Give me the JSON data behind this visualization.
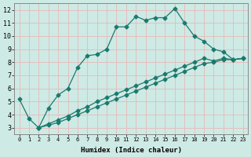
{
  "xlabel": "Humidex (Indice chaleur)",
  "background_color": "#ceeae5",
  "grid_color": "#e8b8b8",
  "line_color": "#1a7a6e",
  "xlim": [
    -0.5,
    23.5
  ],
  "ylim": [
    2.5,
    12.5
  ],
  "xticks": [
    0,
    1,
    2,
    3,
    4,
    5,
    6,
    7,
    8,
    9,
    10,
    11,
    12,
    13,
    14,
    15,
    16,
    17,
    18,
    19,
    20,
    21,
    22,
    23
  ],
  "yticks": [
    3,
    4,
    5,
    6,
    7,
    8,
    9,
    10,
    11,
    12
  ],
  "series1_x": [
    0,
    1,
    2,
    3,
    4,
    5,
    6,
    7,
    8,
    9,
    10,
    11,
    12,
    13,
    14,
    15,
    16,
    17,
    18,
    19,
    20,
    21,
    22,
    23
  ],
  "series1_y": [
    5.2,
    3.7,
    3.0,
    4.5,
    5.5,
    6.0,
    7.6,
    8.5,
    8.6,
    9.0,
    10.7,
    10.7,
    11.5,
    11.2,
    11.4,
    11.4,
    12.1,
    11.0,
    10.0,
    9.6,
    9.0,
    8.8,
    8.2,
    8.3
  ],
  "series2_full_x": [
    2,
    3,
    4,
    5,
    6,
    7,
    8,
    9,
    10,
    11,
    12,
    13,
    14,
    15,
    16,
    17,
    18,
    19,
    20,
    21,
    22,
    23
  ],
  "series2_full_y": [
    3.0,
    3.3,
    3.6,
    3.9,
    4.3,
    4.6,
    5.0,
    5.3,
    5.6,
    5.9,
    6.2,
    6.5,
    6.8,
    7.1,
    7.4,
    7.7,
    8.0,
    8.3,
    8.1,
    8.3,
    8.2,
    8.3
  ],
  "series3_full_x": [
    2,
    3,
    4,
    5,
    6,
    7,
    8,
    9,
    10,
    11,
    12,
    13,
    14,
    15,
    16,
    17,
    18,
    19,
    20,
    21,
    22,
    23
  ],
  "series3_full_y": [
    3.0,
    3.2,
    3.4,
    3.7,
    4.0,
    4.3,
    4.6,
    4.9,
    5.2,
    5.5,
    5.8,
    6.1,
    6.4,
    6.7,
    7.0,
    7.3,
    7.6,
    7.9,
    8.0,
    8.2,
    8.2,
    8.3
  ]
}
